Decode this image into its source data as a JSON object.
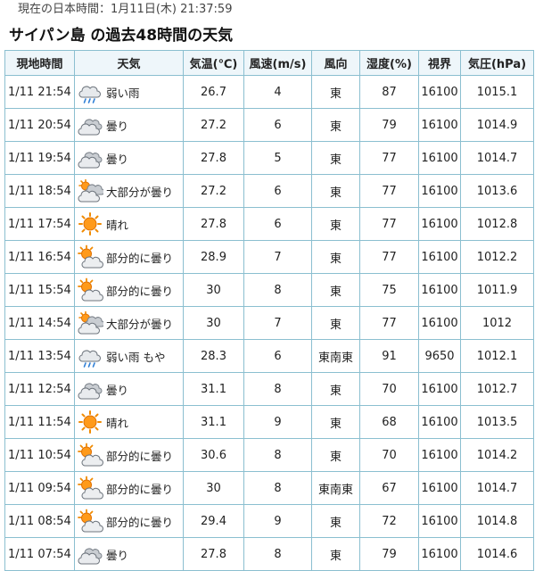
{
  "current_time_label": "現在の日本時間：1月11日(木) 21:37:59",
  "heading": "サイパン島 の過去48時間の天気",
  "columns": [
    "現地時間",
    "天気",
    "気温(℃)",
    "風速(m/s)",
    "風向",
    "湿度(%)",
    "視界",
    "気圧(hPa)"
  ],
  "rows": [
    {
      "time": "1/11 21:54",
      "icon": "light-rain-icon",
      "weather": "弱い雨",
      "temp": "26.7",
      "wind_speed": "4",
      "wind_dir": "東",
      "humidity": "87",
      "visibility": "16100",
      "pressure": "1015.1"
    },
    {
      "time": "1/11 20:54",
      "icon": "cloudy-icon",
      "weather": "曇り",
      "temp": "27.2",
      "wind_speed": "6",
      "wind_dir": "東",
      "humidity": "79",
      "visibility": "16100",
      "pressure": "1014.9"
    },
    {
      "time": "1/11 19:54",
      "icon": "cloudy-icon",
      "weather": "曇り",
      "temp": "27.8",
      "wind_speed": "5",
      "wind_dir": "東",
      "humidity": "77",
      "visibility": "16100",
      "pressure": "1014.7"
    },
    {
      "time": "1/11 18:54",
      "icon": "mostly-cloudy-icon",
      "weather": "大部分が曇り",
      "temp": "27.2",
      "wind_speed": "6",
      "wind_dir": "東",
      "humidity": "77",
      "visibility": "16100",
      "pressure": "1013.6"
    },
    {
      "time": "1/11 17:54",
      "icon": "sunny-icon",
      "weather": "晴れ",
      "temp": "27.8",
      "wind_speed": "6",
      "wind_dir": "東",
      "humidity": "77",
      "visibility": "16100",
      "pressure": "1012.8"
    },
    {
      "time": "1/11 16:54",
      "icon": "partly-cloudy-icon",
      "weather": "部分的に曇り",
      "temp": "28.9",
      "wind_speed": "7",
      "wind_dir": "東",
      "humidity": "77",
      "visibility": "16100",
      "pressure": "1012.2"
    },
    {
      "time": "1/11 15:54",
      "icon": "partly-cloudy-icon",
      "weather": "部分的に曇り",
      "temp": "30",
      "wind_speed": "8",
      "wind_dir": "東",
      "humidity": "75",
      "visibility": "16100",
      "pressure": "1011.9"
    },
    {
      "time": "1/11 14:54",
      "icon": "mostly-cloudy-icon",
      "weather": "大部分が曇り",
      "temp": "30",
      "wind_speed": "7",
      "wind_dir": "東",
      "humidity": "77",
      "visibility": "16100",
      "pressure": "1012"
    },
    {
      "time": "1/11 13:54",
      "icon": "light-rain-icon",
      "weather": "弱い雨 もや",
      "temp": "28.3",
      "wind_speed": "6",
      "wind_dir": "東南東",
      "humidity": "91",
      "visibility": "9650",
      "pressure": "1012.1"
    },
    {
      "time": "1/11 12:54",
      "icon": "cloudy-icon",
      "weather": "曇り",
      "temp": "31.1",
      "wind_speed": "8",
      "wind_dir": "東",
      "humidity": "70",
      "visibility": "16100",
      "pressure": "1012.7"
    },
    {
      "time": "1/11 11:54",
      "icon": "sunny-icon",
      "weather": "晴れ",
      "temp": "31.1",
      "wind_speed": "9",
      "wind_dir": "東",
      "humidity": "68",
      "visibility": "16100",
      "pressure": "1013.5"
    },
    {
      "time": "1/11 10:54",
      "icon": "partly-cloudy-icon",
      "weather": "部分的に曇り",
      "temp": "30.6",
      "wind_speed": "8",
      "wind_dir": "東",
      "humidity": "70",
      "visibility": "16100",
      "pressure": "1014.2"
    },
    {
      "time": "1/11 09:54",
      "icon": "partly-cloudy-icon",
      "weather": "部分的に曇り",
      "temp": "30",
      "wind_speed": "8",
      "wind_dir": "東南東",
      "humidity": "67",
      "visibility": "16100",
      "pressure": "1014.7"
    },
    {
      "time": "1/11 08:54",
      "icon": "partly-cloudy-icon",
      "weather": "部分的に曇り",
      "temp": "29.4",
      "wind_speed": "9",
      "wind_dir": "東",
      "humidity": "72",
      "visibility": "16100",
      "pressure": "1014.8"
    },
    {
      "time": "1/11 07:54",
      "icon": "cloudy-icon",
      "weather": "曇り",
      "temp": "27.8",
      "wind_speed": "8",
      "wind_dir": "東",
      "humidity": "79",
      "visibility": "16100",
      "pressure": "1014.6"
    }
  ]
}
